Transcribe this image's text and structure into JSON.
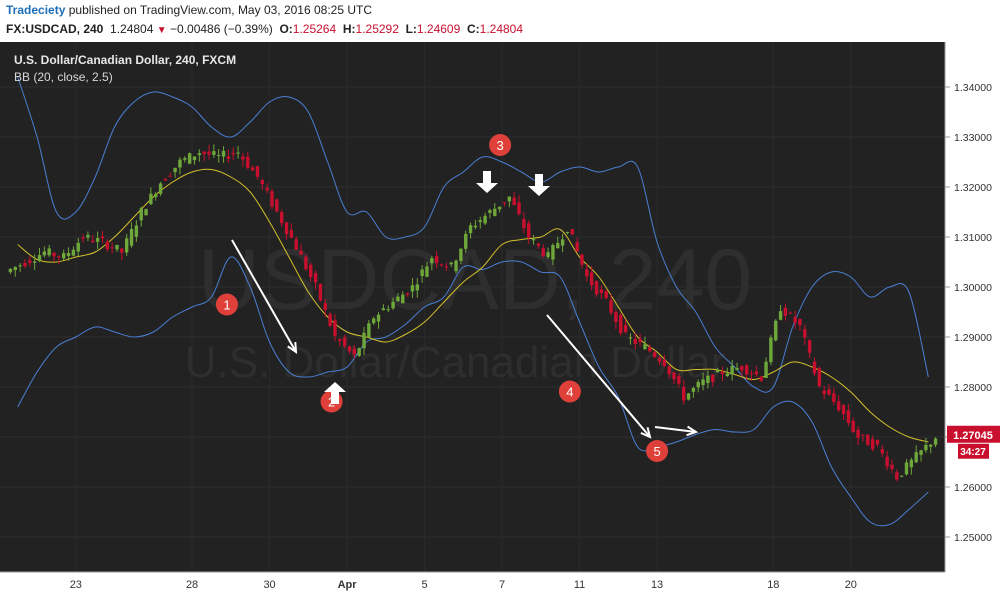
{
  "header": {
    "publisher": "Tradeciety",
    "published_text": "published on TradingView.com, May 03, 2016 08:25 UTC",
    "symbol": "FX:USDCAD, 240",
    "last": "1.24804",
    "change": "−0.00486 (−0.39%)",
    "o_label": "O:",
    "o_value": "1.25264",
    "h_label": "H:",
    "h_value": "1.25292",
    "l_label": "L:",
    "l_value": "1.24609",
    "c_label": "C:",
    "c_value": "1.24804"
  },
  "chart_legend": {
    "title": "U.S. Dollar/Canadian Dollar, 240, FXCM",
    "indicator": "BB (20, close, 2.5)"
  },
  "watermark": {
    "big": "USDCAD, 240",
    "small": "U.S. Dollar/Canadian Dollar"
  },
  "price_tags": {
    "last_price": "1.27045",
    "countdown": "34:27"
  },
  "colors": {
    "background": "#222222",
    "up": "#6fa83a",
    "down": "#c8102e",
    "band": "#4a7fd4",
    "basis": "#d4c12a",
    "annotation": "#e0403a"
  },
  "annotations": [
    {
      "label": "1",
      "x": 11.3,
      "y": 1.2965
    },
    {
      "label": "2",
      "x": 16.7,
      "y": 1.2771
    },
    {
      "label": "3",
      "x": 25.4,
      "y": 1.3284
    },
    {
      "label": "4",
      "x": 29.0,
      "y": 1.2791
    },
    {
      "label": "5",
      "x": 33.5,
      "y": 1.2672
    }
  ],
  "chart_data": {
    "type": "candlestick",
    "title": "U.S. Dollar/Canadian Dollar, 240, FXCM",
    "ylim": [
      1.243,
      1.349
    ],
    "y_ticks": [
      "1.34000",
      "1.33000",
      "1.32000",
      "1.31000",
      "1.30000",
      "1.29000",
      "1.28000",
      "1.27000",
      "1.26000",
      "1.25000"
    ],
    "x_ticks": [
      {
        "label": "23",
        "x": 3.5
      },
      {
        "label": "28",
        "x": 9.5
      },
      {
        "label": "30",
        "x": 13.5
      },
      {
        "label": "Apr",
        "x": 17.5
      },
      {
        "label": "5",
        "x": 21.5
      },
      {
        "label": "7",
        "x": 25.5
      },
      {
        "label": "11",
        "x": 29.5
      },
      {
        "label": "13",
        "x": 33.5
      },
      {
        "label": "18",
        "x": 39.5
      },
      {
        "label": "20",
        "x": 43.5
      }
    ],
    "x_range": [
      0,
      48
    ],
    "closes": [
      1.305,
      1.307,
      1.306,
      1.31,
      1.309,
      1.307,
      1.315,
      1.321,
      1.325,
      1.327,
      1.326,
      1.327,
      1.322,
      1.315,
      1.308,
      1.3,
      1.29,
      1.286,
      1.294,
      1.297,
      1.3,
      1.306,
      1.304,
      1.312,
      1.315,
      1.318,
      1.31,
      1.306,
      1.312,
      1.302,
      1.297,
      1.29,
      1.288,
      1.285,
      1.278,
      1.281,
      1.283,
      1.284,
      1.282,
      1.296,
      1.292,
      1.28,
      1.276,
      1.27,
      1.268,
      1.262,
      1.266,
      1.27
    ],
    "bands": {
      "upper": [
        1.342,
        1.33,
        1.315,
        1.315,
        1.322,
        1.332,
        1.337,
        1.339,
        1.338,
        1.336,
        1.332,
        1.33,
        1.333,
        1.337,
        1.338,
        1.335,
        1.325,
        1.315,
        1.315,
        1.31,
        1.31,
        1.312,
        1.32,
        1.323,
        1.326,
        1.325,
        1.323,
        1.321,
        1.323,
        1.324,
        1.323,
        1.324,
        1.324,
        1.309,
        1.3,
        1.295,
        1.288,
        1.284,
        1.28,
        1.28,
        1.292,
        1.3,
        1.303,
        1.302,
        1.298,
        1.3,
        1.299,
        1.282
      ],
      "basis": [
        1.3085,
        1.3055,
        1.305,
        1.306,
        1.307,
        1.31,
        1.314,
        1.318,
        1.321,
        1.323,
        1.3235,
        1.322,
        1.319,
        1.313,
        1.306,
        1.299,
        1.294,
        1.291,
        1.29,
        1.289,
        1.2905,
        1.293,
        1.297,
        1.301,
        1.304,
        1.3085,
        1.3095,
        1.31,
        1.3115,
        1.306,
        1.302,
        1.296,
        1.29,
        1.287,
        1.2835,
        1.2835,
        1.2835,
        1.2825,
        1.2815,
        1.283,
        1.285,
        1.284,
        1.282,
        1.279,
        1.275,
        1.272,
        1.27,
        1.269
      ],
      "lower": [
        1.276,
        1.283,
        1.288,
        1.29,
        1.292,
        1.291,
        1.29,
        1.291,
        1.294,
        1.296,
        1.298,
        1.306,
        1.3,
        1.289,
        1.283,
        1.282,
        1.283,
        1.284,
        1.289,
        1.29,
        1.2925,
        1.296,
        1.298,
        1.304,
        1.3035,
        1.305,
        1.305,
        1.303,
        1.302,
        1.293,
        1.284,
        1.278,
        1.268,
        1.268,
        1.269,
        1.2705,
        1.2715,
        1.271,
        1.2715,
        1.276,
        1.277,
        1.273,
        1.264,
        1.258,
        1.253,
        1.2525,
        1.2555,
        1.259
      ]
    }
  }
}
